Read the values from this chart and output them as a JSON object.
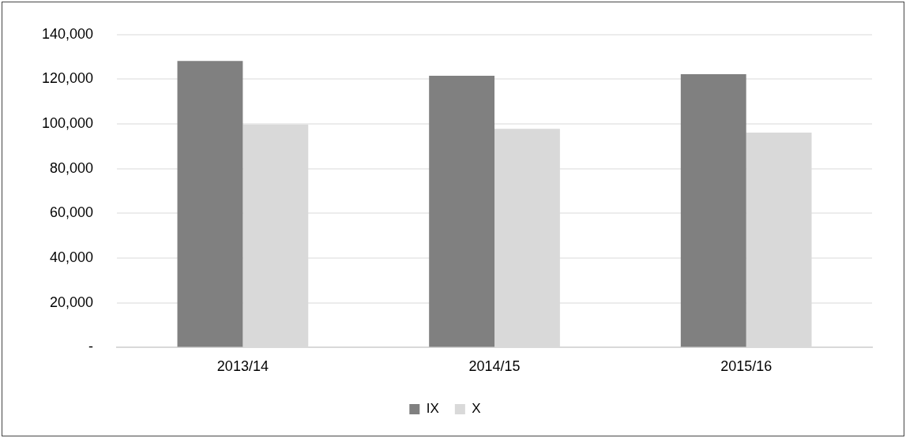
{
  "chart_data": {
    "type": "bar",
    "categories": [
      "2013/14",
      "2014/15",
      "2015/16"
    ],
    "series": [
      {
        "name": "IX",
        "color": "#808080",
        "values": [
          128200,
          121600,
          122300
        ]
      },
      {
        "name": "X",
        "color": "#d9d9d9",
        "values": [
          99800,
          97800,
          96200
        ]
      }
    ],
    "ylim": [
      0,
      140000
    ],
    "yticks": [
      {
        "value": 0,
        "label": "-"
      },
      {
        "value": 20000,
        "label": "20,000"
      },
      {
        "value": 40000,
        "label": "40,000"
      },
      {
        "value": 60000,
        "label": "60,000"
      },
      {
        "value": 80000,
        "label": "80,000"
      },
      {
        "value": 100000,
        "label": "100,000"
      },
      {
        "value": 120000,
        "label": "120,000"
      },
      {
        "value": 140000,
        "label": "140,000"
      }
    ],
    "grid": "y",
    "legend": "bottom"
  }
}
